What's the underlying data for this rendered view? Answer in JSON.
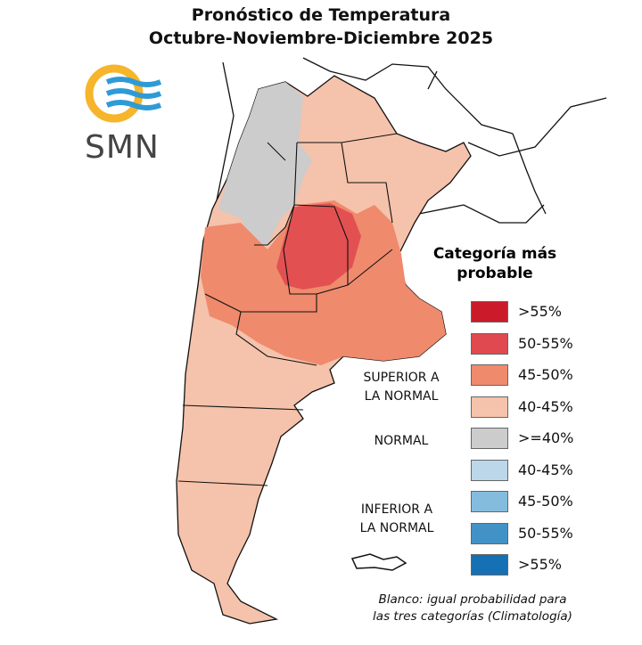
{
  "title": {
    "line1": "Pronóstico de Temperatura",
    "line2": "Octubre-Noviembre-Diciembre 2025"
  },
  "logo": {
    "text": "SMN"
  },
  "legend": {
    "title_line1": "Categoría más",
    "title_line2": "probable",
    "groups": {
      "superior": [
        "SUPERIOR A",
        "LA NORMAL"
      ],
      "normal": "NORMAL",
      "inferior": [
        "INFERIOR A",
        "LA NORMAL"
      ]
    },
    "items": [
      {
        "label": ">55%",
        "color": "#CB1B2A"
      },
      {
        "label": "50-55%",
        "color": "#E0494F"
      },
      {
        "label": "45-50%",
        "color": "#EF8A6D"
      },
      {
        "label": "40-45%",
        "color": "#F5C2AB"
      },
      {
        "label": ">=40%",
        "color": "#CCCCCC"
      },
      {
        "label": "40-45%",
        "color": "#BCD7EA"
      },
      {
        "label": "45-50%",
        "color": "#84BCDE"
      },
      {
        "label": "50-55%",
        "color": "#4292C6"
      },
      {
        "label": ">55%",
        "color": "#1570B4"
      }
    ],
    "note_line1": "Blanco: igual probabilidad para",
    "note_line2": "las tres categorías (Climatología)"
  }
}
